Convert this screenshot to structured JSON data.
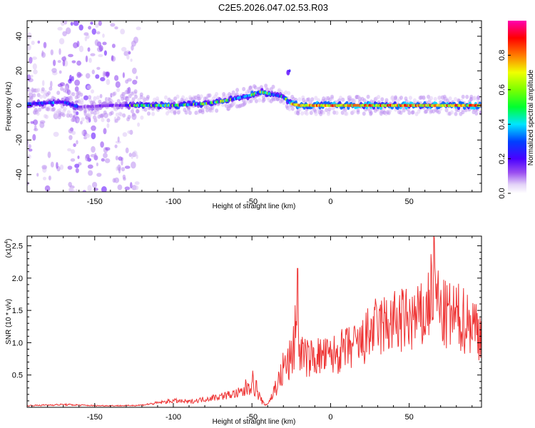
{
  "title": "C2E5.2026.047.02.53.R03",
  "chart_data": [
    {
      "type": "heatmap",
      "xlabel": "Height of straight line (km)",
      "ylabel": "Frequency (Hz)",
      "xlim": [
        -193,
        96
      ],
      "ylim": [
        -50,
        49
      ],
      "xticks": [
        -150,
        -100,
        -50,
        0,
        50
      ],
      "yticks": [
        -40,
        -20,
        0,
        20,
        40
      ],
      "colorbar": {
        "label": "Normalized spectral amplitude",
        "range": [
          0,
          1
        ],
        "ticks": [
          "0.0",
          "0.2",
          "0.4",
          "0.6",
          "0.8"
        ],
        "colormap": "rainbow (white-purple-blue-cyan-green-yellow-red-magenta)"
      },
      "ridge": {
        "x": [
          -190,
          -170,
          -160,
          -140,
          -120,
          -100,
          -80,
          -65,
          -55,
          -50,
          -45,
          -40,
          -30,
          -25,
          -20,
          -10,
          0,
          20,
          40,
          60,
          80,
          95
        ],
        "y": [
          1,
          2,
          -1,
          0,
          0,
          0,
          1,
          3,
          5,
          6,
          8,
          7,
          5,
          1,
          0,
          0,
          0,
          0,
          0,
          0,
          0,
          0
        ]
      },
      "grid": false
    },
    {
      "type": "line",
      "xlabel": "Height of straight line (km)",
      "ylabel": "SNR (10 * v/v)",
      "y_multiplier": "(x10^4)",
      "y_multiplier_base": "(x10",
      "y_multiplier_exp": "4",
      "xlim": [
        -193,
        96
      ],
      "ylim": [
        0,
        2.65
      ],
      "xticks": [
        -150,
        -100,
        -50,
        0,
        50
      ],
      "yticks": [
        0.5,
        1.0,
        1.5,
        2.0,
        2.5
      ],
      "series": [
        {
          "color": "#ee3333",
          "envelope_x": [
            -193,
            -170,
            -150,
            -130,
            -120,
            -110,
            -100,
            -90,
            -80,
            -70,
            -60,
            -55,
            -52,
            -50,
            -47,
            -45,
            -42,
            -40,
            -37,
            -35,
            -32,
            -30,
            -28,
            -25,
            -23,
            -21,
            -20,
            -15,
            -10,
            -5,
            0,
            10,
            20,
            25,
            30,
            40,
            50,
            60,
            66,
            70,
            80,
            90,
            96
          ],
          "envelope_y": [
            0.03,
            0.05,
            0.03,
            0.03,
            0.04,
            0.08,
            0.12,
            0.1,
            0.15,
            0.2,
            0.25,
            0.35,
            0.5,
            0.55,
            0.4,
            0.2,
            0.05,
            0.08,
            0.25,
            0.45,
            0.6,
            0.85,
            0.9,
            1.0,
            1.5,
            2.15,
            1.2,
            1.0,
            1.05,
            1.05,
            1.05,
            1.2,
            1.3,
            1.55,
            1.65,
            1.75,
            1.8,
            1.85,
            2.62,
            1.9,
            1.85,
            1.75,
            1.55
          ],
          "peaks": [
            [
              -21,
              2.15
            ],
            [
              66,
              2.62
            ]
          ]
        }
      ],
      "grid": false
    }
  ]
}
